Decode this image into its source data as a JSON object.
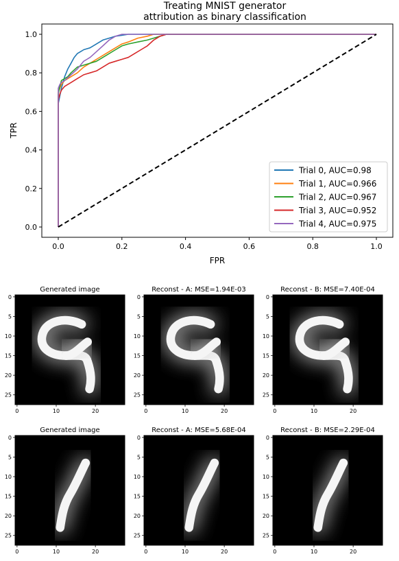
{
  "chart_data": [
    {
      "type": "line",
      "title": "Treating MNIST generator\nattribution as binary classification",
      "xlabel": "FPR",
      "ylabel": "TPR",
      "xlim": [
        -0.05,
        1.05
      ],
      "ylim": [
        -0.05,
        1.05
      ],
      "xticks": [
        "0.0",
        "0.2",
        "0.4",
        "0.6",
        "0.8",
        "1.0"
      ],
      "yticks": [
        "0.0",
        "0.2",
        "0.4",
        "0.6",
        "0.8",
        "1.0"
      ],
      "legend_position": "lower-right",
      "grid": false,
      "series": [
        {
          "name": "Trial 0, AUC=0.98",
          "color": "#1f77b4",
          "x": [
            0,
            0,
            0.005,
            0.01,
            0.02,
            0.03,
            0.04,
            0.05,
            0.06,
            0.07,
            0.08,
            0.1,
            0.12,
            0.14,
            0.16,
            0.18,
            0.2,
            0.22,
            0.25,
            0.3,
            0.35,
            1.0
          ],
          "y": [
            0,
            0.64,
            0.68,
            0.72,
            0.78,
            0.82,
            0.85,
            0.88,
            0.9,
            0.91,
            0.92,
            0.93,
            0.95,
            0.97,
            0.98,
            0.99,
            0.995,
            1.0,
            1.0,
            1.0,
            1.0,
            1.0
          ]
        },
        {
          "name": "Trial 1, AUC=0.966",
          "color": "#ff7f0e",
          "x": [
            0,
            0,
            0.005,
            0.01,
            0.02,
            0.04,
            0.06,
            0.08,
            0.1,
            0.12,
            0.15,
            0.18,
            0.2,
            0.22,
            0.25,
            0.28,
            0.3,
            0.32,
            1.0
          ],
          "y": [
            0,
            0.7,
            0.72,
            0.74,
            0.76,
            0.78,
            0.8,
            0.83,
            0.85,
            0.87,
            0.9,
            0.93,
            0.95,
            0.96,
            0.98,
            0.99,
            1.0,
            1.0,
            1.0
          ]
        },
        {
          "name": "Trial 2, AUC=0.967",
          "color": "#2ca02c",
          "x": [
            0,
            0,
            0.005,
            0.01,
            0.02,
            0.03,
            0.04,
            0.06,
            0.08,
            0.1,
            0.12,
            0.15,
            0.18,
            0.2,
            0.22,
            0.25,
            0.28,
            0.3,
            0.32,
            0.34,
            1.0
          ],
          "y": [
            0,
            0.69,
            0.73,
            0.76,
            0.77,
            0.78,
            0.8,
            0.83,
            0.84,
            0.85,
            0.86,
            0.89,
            0.92,
            0.94,
            0.95,
            0.96,
            0.97,
            0.98,
            0.99,
            1.0,
            1.0
          ]
        },
        {
          "name": "Trial 3, AUC=0.952",
          "color": "#d62728",
          "x": [
            0,
            0,
            0.005,
            0.01,
            0.02,
            0.04,
            0.06,
            0.08,
            0.1,
            0.12,
            0.14,
            0.16,
            0.18,
            0.2,
            0.22,
            0.24,
            0.26,
            0.28,
            0.3,
            0.32,
            0.34,
            1.0
          ],
          "y": [
            0,
            0.66,
            0.69,
            0.71,
            0.73,
            0.75,
            0.77,
            0.79,
            0.8,
            0.81,
            0.83,
            0.85,
            0.86,
            0.87,
            0.88,
            0.9,
            0.92,
            0.94,
            0.97,
            0.99,
            1.0,
            1.0
          ]
        },
        {
          "name": "Trial 4, AUC=0.975",
          "color": "#9467bd",
          "x": [
            0,
            0,
            0.005,
            0.01,
            0.02,
            0.04,
            0.06,
            0.08,
            0.1,
            0.12,
            0.14,
            0.16,
            0.18,
            0.2,
            0.22,
            0.25,
            0.28,
            0.3,
            1.0
          ],
          "y": [
            0,
            0.72,
            0.74,
            0.75,
            0.76,
            0.79,
            0.82,
            0.86,
            0.88,
            0.91,
            0.94,
            0.97,
            0.99,
            1.0,
            1.0,
            1.0,
            1.0,
            1.0,
            1.0
          ]
        },
        {
          "name": "",
          "color": "#000000",
          "style": "dashed",
          "x": [
            0,
            1
          ],
          "y": [
            0,
            1
          ]
        }
      ]
    },
    {
      "type": "heatmap",
      "layout": "grid 2x3",
      "colormap": "gray",
      "xticks": [
        "0",
        "10",
        "20"
      ],
      "yticks": [
        "0",
        "5",
        "10",
        "15",
        "20",
        "25"
      ],
      "panels": [
        {
          "title": "Generated image",
          "digit": "9"
        },
        {
          "title": "Reconst - A: MSE=1.94E-03",
          "digit": "9"
        },
        {
          "title": "Reconst - B: MSE=7.40E-04",
          "digit": "9"
        },
        {
          "title": "Generated image",
          "digit": "1"
        },
        {
          "title": "Reconst - A: MSE=5.68E-04",
          "digit": "1"
        },
        {
          "title": "Reconst - B: MSE=2.29E-04",
          "digit": "1"
        }
      ]
    }
  ]
}
